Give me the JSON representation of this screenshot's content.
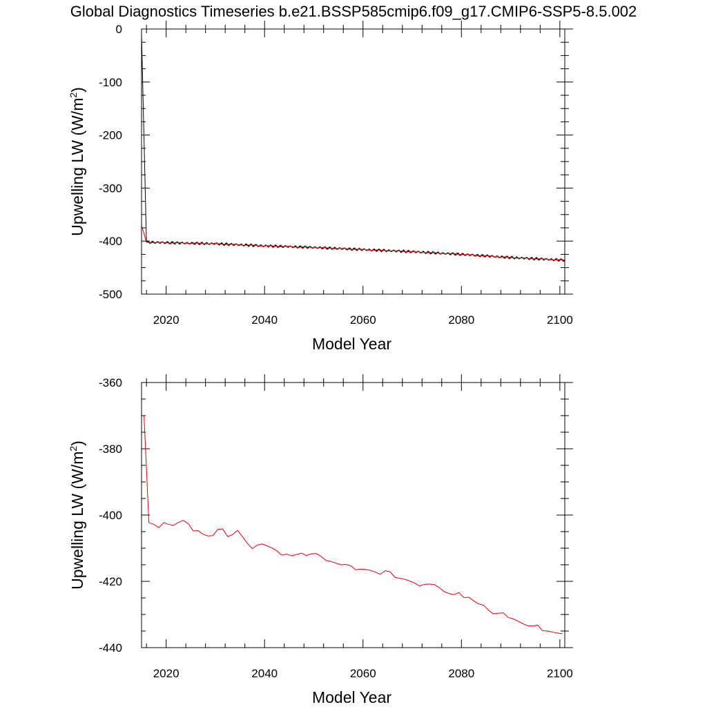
{
  "page": {
    "title": "Global Diagnostics Timeseries b.e21.BSSP585cmip6.f09_g17.CMIP6-SSP5-8.5.002"
  },
  "chart_data": [
    {
      "type": "line",
      "title": "",
      "xlabel": "Model Year",
      "ylabel_main": "Upwelling LW (W/m",
      "ylabel_sup": "2",
      "ylabel_close": ")",
      "xlim": [
        2015,
        2101
      ],
      "ylim": [
        -500,
        0
      ],
      "x_ticks": [
        2020,
        2040,
        2060,
        2080,
        2100
      ],
      "y_ticks": [
        0,
        -100,
        -200,
        -300,
        -400,
        -500
      ],
      "grid": false,
      "series": [
        {
          "color": "#000000",
          "style": "monthly",
          "x": [
            2015.0,
            2016.0,
            2020,
            2030,
            2040,
            2050,
            2060,
            2070,
            2080,
            2090,
            2101
          ],
          "values": [
            -10,
            -402,
            -403,
            -405,
            -409,
            -412,
            -416,
            -420,
            -425,
            -431,
            -436
          ]
        },
        {
          "color": "#e0000e",
          "style": "annual",
          "x": [
            2015.0,
            2016.0,
            2020,
            2030,
            2040,
            2050,
            2060,
            2070,
            2080,
            2090,
            2101
          ],
          "values": [
            -370,
            -402,
            -403,
            -405,
            -409,
            -412,
            -416,
            -420,
            -425,
            -431,
            -436
          ]
        }
      ]
    },
    {
      "type": "line",
      "title": "",
      "xlabel": "Model Year",
      "ylabel_main": "Upwelling LW (W/m",
      "ylabel_sup": "2",
      "ylabel_close": ")",
      "xlim": [
        2015,
        2101
      ],
      "ylim": [
        -440,
        -360
      ],
      "x_ticks": [
        2020,
        2040,
        2060,
        2080,
        2100
      ],
      "y_ticks": [
        -360,
        -380,
        -400,
        -420,
        -440
      ],
      "grid": false,
      "series": [
        {
          "color": "#e0000e",
          "x": [
            2015.5,
            2016.5,
            2017.5,
            2018.5,
            2019.5,
            2020.5,
            2021.5,
            2022.5,
            2023.5,
            2024.5,
            2025.5,
            2026.5,
            2027.5,
            2028.5,
            2029.5,
            2030.5,
            2031.5,
            2032.5,
            2033.5,
            2034.5,
            2035.5,
            2036.5,
            2037.5,
            2038.5,
            2039.5,
            2040.5,
            2041.5,
            2042.5,
            2043.5,
            2044.5,
            2045.5,
            2046.5,
            2047.5,
            2048.5,
            2049.5,
            2050.5,
            2051.5,
            2052.5,
            2053.5,
            2054.5,
            2055.5,
            2056.5,
            2057.5,
            2058.5,
            2059.5,
            2060.5,
            2061.5,
            2062.5,
            2063.5,
            2064.5,
            2065.5,
            2066.5,
            2067.5,
            2068.5,
            2069.5,
            2070.5,
            2071.5,
            2072.5,
            2073.5,
            2074.5,
            2075.5,
            2076.5,
            2077.5,
            2078.5,
            2079.5,
            2080.5,
            2081.5,
            2082.5,
            2083.5,
            2084.5,
            2085.5,
            2086.5,
            2087.5,
            2088.5,
            2089.5,
            2090.5,
            2091.5,
            2092.5,
            2093.5,
            2094.5,
            2095.5,
            2096.5,
            2097.5,
            2098.5,
            2099.5,
            2100.5
          ],
          "values": [
            -370,
            -402.3,
            -402.8,
            -403.8,
            -402.3,
            -402.8,
            -403.1,
            -402.2,
            -401.6,
            -402.6,
            -404.8,
            -404.7,
            -405.8,
            -406.3,
            -406.2,
            -404.3,
            -404.2,
            -406.5,
            -405.9,
            -404.6,
            -406.5,
            -408.5,
            -410.1,
            -409.1,
            -408.7,
            -409.3,
            -409.9,
            -410.8,
            -412.1,
            -411.8,
            -412.3,
            -411.9,
            -411.5,
            -412.2,
            -411.7,
            -411.6,
            -412.5,
            -413.7,
            -414.0,
            -414.5,
            -415.0,
            -414.9,
            -415.3,
            -416.5,
            -416.3,
            -416.4,
            -416.7,
            -417.2,
            -417.9,
            -416.8,
            -417.1,
            -418.8,
            -419.1,
            -419.4,
            -419.9,
            -420.5,
            -421.4,
            -420.9,
            -420.8,
            -421.0,
            -421.9,
            -423.1,
            -423.7,
            -424.0,
            -423.4,
            -424.9,
            -424.8,
            -425.9,
            -426.8,
            -427.2,
            -428.7,
            -429.8,
            -429.6,
            -429.5,
            -430.9,
            -431.3,
            -432.0,
            -432.8,
            -433.4,
            -433.5,
            -433.2,
            -434.9,
            -435.0,
            -435.3,
            -435.6,
            -435.8
          ]
        }
      ]
    }
  ]
}
